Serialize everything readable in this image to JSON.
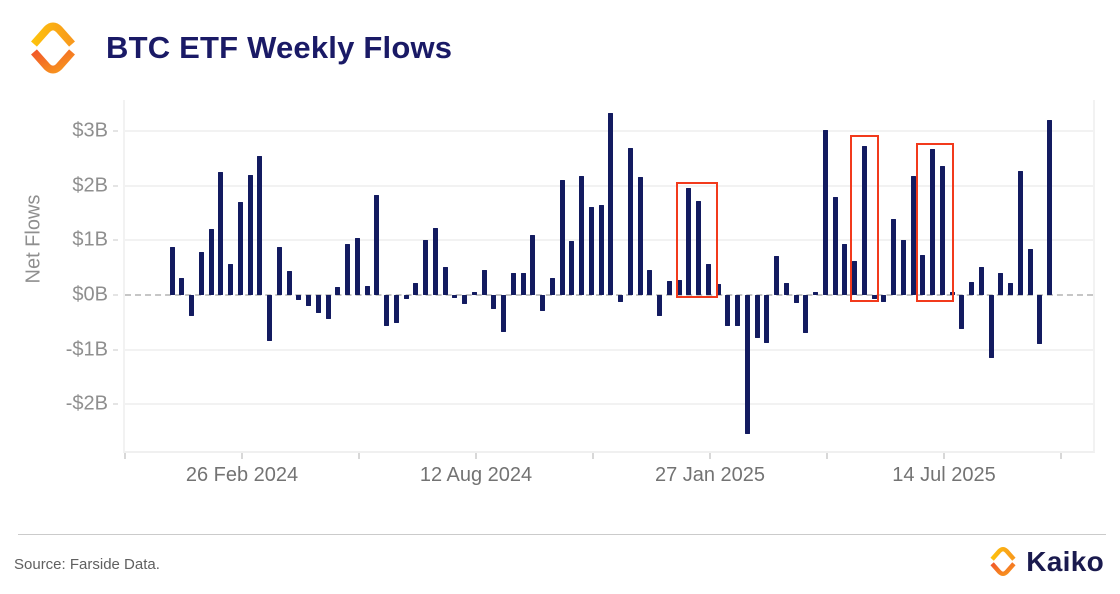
{
  "header": {
    "title": "BTC ETF Weekly Flows"
  },
  "footer": {
    "source": "Source: Farside Data.",
    "brand_wordmark": "Kaiko"
  },
  "icons": {
    "header_logo": "kaiko-logo",
    "footer_logo": "kaiko-logo"
  },
  "colors": {
    "bar": "#131b60",
    "highlight": "#f23a1c",
    "title": "#1a1a66",
    "axis_text": "#8f8f8f",
    "brand_orange_light": "#fdc10d",
    "brand_orange_mid": "#f8991d",
    "brand_orange_deep": "#f1592a"
  },
  "chart_data": {
    "type": "bar",
    "title": "BTC ETF Weekly Flows",
    "ylabel": "Net Flows",
    "xlabel": "",
    "unit": "USD billions",
    "ylim": [
      -2.9,
      3.5
    ],
    "grid": true,
    "zero_line": "dashed",
    "values": [
      0.87,
      0.31,
      -0.39,
      0.79,
      1.2,
      2.25,
      0.56,
      1.7,
      2.2,
      2.55,
      -0.85,
      0.88,
      0.44,
      -0.09,
      -0.21,
      -0.33,
      -0.44,
      0.14,
      0.93,
      1.05,
      0.17,
      1.83,
      -0.56,
      -0.52,
      -0.08,
      0.22,
      1.01,
      1.22,
      0.52,
      -0.06,
      -0.16,
      0.05,
      0.46,
      -0.26,
      -0.68,
      0.4,
      0.4,
      1.09,
      -0.29,
      0.31,
      2.11,
      0.98,
      2.18,
      1.61,
      1.65,
      3.32,
      -0.13,
      2.69,
      2.15,
      0.46,
      -0.39,
      0.25,
      0.28,
      1.96,
      1.72,
      0.56,
      0.2,
      -0.57,
      -0.57,
      -2.55,
      -0.79,
      -0.87,
      0.72,
      0.22,
      -0.15,
      -0.7,
      0.05,
      3.02,
      1.8,
      0.93,
      0.62,
      2.72,
      -0.07,
      -0.12,
      1.39,
      1.01,
      2.17,
      0.74,
      2.66,
      2.35,
      0.06,
      -0.63,
      0.23,
      0.52,
      -1.16,
      0.4,
      0.22,
      2.27,
      0.84,
      -0.89,
      3.2
    ],
    "y_ticks": [
      {
        "label": "$3B",
        "value": 3
      },
      {
        "label": "$2B",
        "value": 2
      },
      {
        "label": "$1B",
        "value": 1
      },
      {
        "label": "$0B",
        "value": 0
      },
      {
        "label": "-$1B",
        "value": -1
      },
      {
        "label": "-$2B",
        "value": -2
      }
    ],
    "x_tick_labels": [
      "26 Feb 2024",
      "12 Aug 2024",
      "27 Jan 2025",
      "14 Jul 2025"
    ],
    "highlights": [
      {
        "start": 51.9,
        "end": 55.75,
        "top": 2.07,
        "bottom": -0.06
      },
      {
        "start": 69.75,
        "end": 72.3,
        "top": 2.93,
        "bottom": -0.13
      },
      {
        "start": 76.6,
        "end": 80.0,
        "top": 2.78,
        "bottom": -0.12
      }
    ],
    "legend": null
  }
}
